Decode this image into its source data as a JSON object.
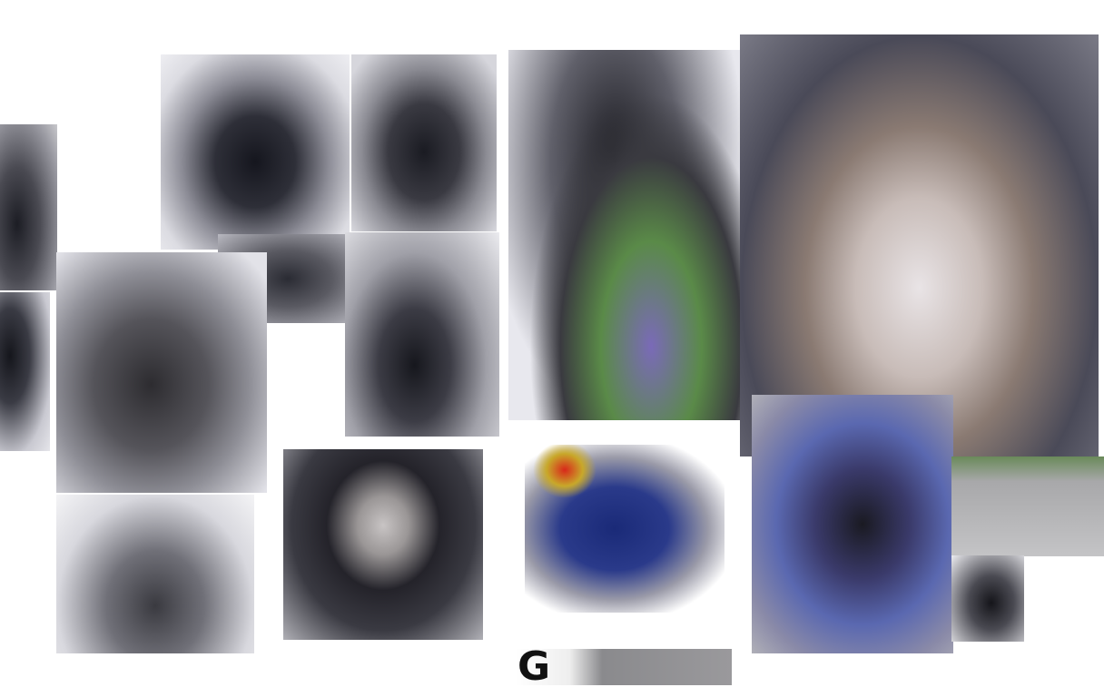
{
  "image": {
    "fragment_text": "G"
  }
}
